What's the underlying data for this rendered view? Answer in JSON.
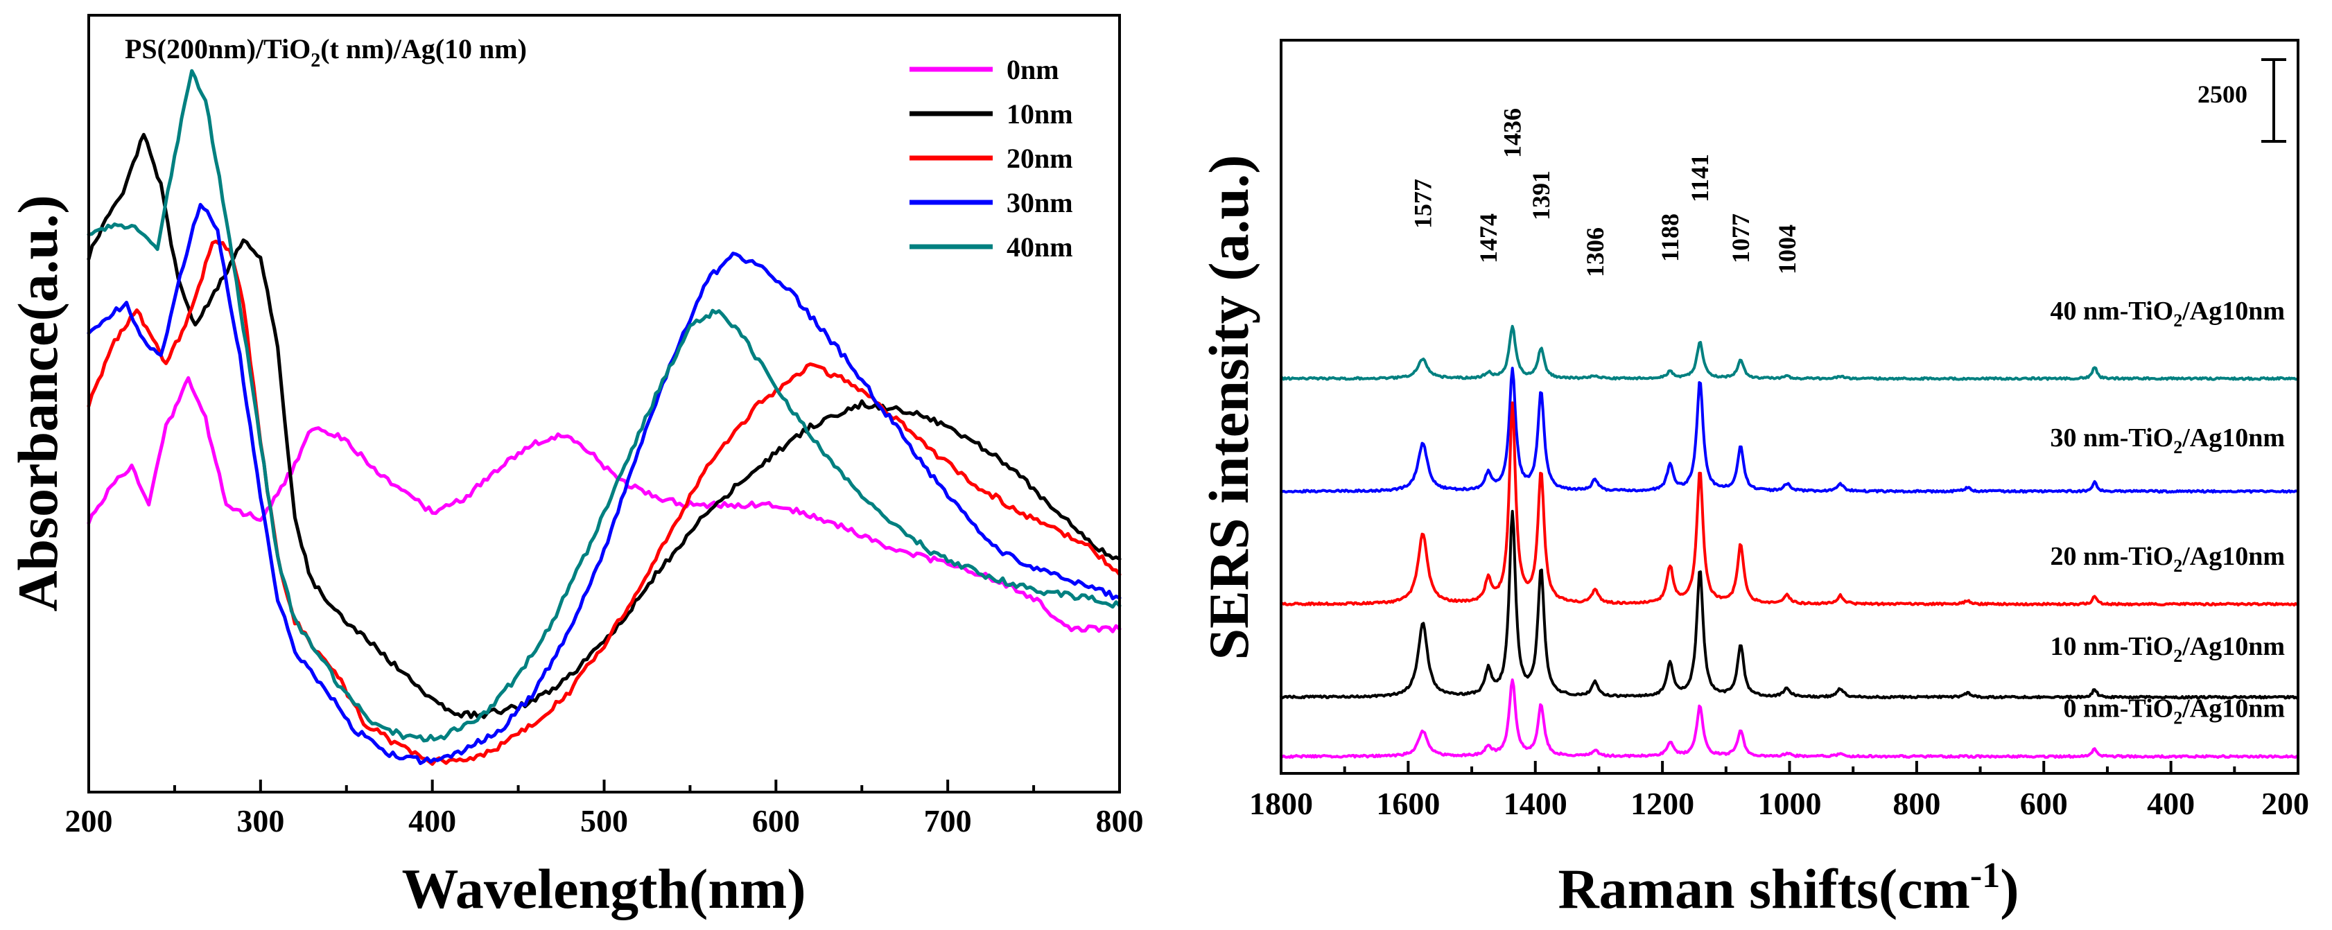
{
  "chart_data": [
    {
      "type": "line",
      "title": "PS(200nm)/TiO2(t nm)/Ag(10 nm)",
      "title_parts": {
        "pre": "PS(200nm)/TiO",
        "sub": "2",
        "post": "(t nm)/Ag(10 nm)"
      },
      "xlabel": "Wavelength(nm)",
      "ylabel": "Absorbance(a.u.)",
      "xlim": [
        200,
        800
      ],
      "ylim": [
        0,
        1
      ],
      "xticks": [
        200,
        300,
        400,
        500,
        600,
        700,
        800
      ],
      "xtick_labels": [
        "200",
        "300",
        "400",
        "500",
        "600",
        "700",
        "800"
      ],
      "legend_position": "top-right",
      "series": [
        {
          "name": "0nm",
          "color": "#ff00ff",
          "x": [
            200,
            215,
            225,
            235,
            245,
            258,
            268,
            280,
            300,
            320,
            330,
            345,
            370,
            400,
            420,
            440,
            460,
            475,
            490,
            510,
            530,
            550,
            570,
            600,
            630,
            660,
            690,
            720,
            750,
            770,
            800
          ],
          "y": [
            0.35,
            0.4,
            0.42,
            0.37,
            0.47,
            0.53,
            0.48,
            0.37,
            0.35,
            0.42,
            0.47,
            0.46,
            0.41,
            0.36,
            0.38,
            0.42,
            0.45,
            0.46,
            0.44,
            0.4,
            0.38,
            0.37,
            0.37,
            0.37,
            0.35,
            0.32,
            0.3,
            0.28,
            0.25,
            0.21,
            0.21
          ]
        },
        {
          "name": "10nm",
          "color": "#000000",
          "x": [
            200,
            210,
            220,
            232,
            242,
            252,
            262,
            275,
            290,
            300,
            310,
            320,
            330,
            345,
            360,
            380,
            400,
            415,
            430,
            450,
            470,
            490,
            510,
            530,
            560,
            590,
            620,
            650,
            680,
            700,
            730,
            760,
            790,
            800
          ],
          "y": [
            0.69,
            0.74,
            0.77,
            0.85,
            0.78,
            0.66,
            0.6,
            0.65,
            0.71,
            0.69,
            0.57,
            0.35,
            0.27,
            0.23,
            0.2,
            0.16,
            0.12,
            0.1,
            0.1,
            0.11,
            0.13,
            0.17,
            0.22,
            0.28,
            0.36,
            0.42,
            0.47,
            0.5,
            0.49,
            0.47,
            0.43,
            0.37,
            0.31,
            0.3
          ]
        },
        {
          "name": "20nm",
          "color": "#ff0000",
          "x": [
            200,
            215,
            228,
            245,
            260,
            272,
            282,
            290,
            300,
            310,
            320,
            330,
            345,
            360,
            380,
            400,
            420,
            440,
            460,
            480,
            500,
            520,
            540,
            560,
            590,
            620,
            640,
            660,
            690,
            720,
            750,
            780,
            800
          ],
          "y": [
            0.5,
            0.58,
            0.62,
            0.55,
            0.62,
            0.71,
            0.7,
            0.63,
            0.45,
            0.3,
            0.22,
            0.19,
            0.15,
            0.09,
            0.06,
            0.04,
            0.04,
            0.06,
            0.09,
            0.13,
            0.19,
            0.26,
            0.34,
            0.42,
            0.5,
            0.55,
            0.53,
            0.5,
            0.44,
            0.39,
            0.35,
            0.32,
            0.28
          ]
        },
        {
          "name": "30nm",
          "color": "#0000ff",
          "x": [
            200,
            210,
            222,
            232,
            242,
            255,
            265,
            275,
            288,
            300,
            310,
            320,
            335,
            355,
            375,
            395,
            415,
            440,
            460,
            480,
            500,
            520,
            540,
            560,
            575,
            590,
            610,
            640,
            670,
            700,
            730,
            760,
            800
          ],
          "y": [
            0.59,
            0.61,
            0.63,
            0.58,
            0.56,
            0.68,
            0.76,
            0.72,
            0.56,
            0.38,
            0.25,
            0.18,
            0.14,
            0.08,
            0.05,
            0.04,
            0.05,
            0.08,
            0.13,
            0.21,
            0.31,
            0.44,
            0.56,
            0.66,
            0.69,
            0.68,
            0.64,
            0.56,
            0.47,
            0.38,
            0.31,
            0.28,
            0.25
          ]
        },
        {
          "name": "40nm",
          "color": "#008080",
          "x": [
            200,
            215,
            225,
            240,
            250,
            260,
            268,
            280,
            292,
            300,
            310,
            320,
            330,
            345,
            365,
            385,
            405,
            430,
            450,
            470,
            490,
            510,
            530,
            550,
            565,
            580,
            600,
            630,
            660,
            690,
            720,
            750,
            780,
            800
          ],
          "y": [
            0.72,
            0.73,
            0.73,
            0.7,
            0.82,
            0.93,
            0.89,
            0.74,
            0.57,
            0.45,
            0.3,
            0.22,
            0.19,
            0.14,
            0.09,
            0.07,
            0.07,
            0.1,
            0.15,
            0.22,
            0.31,
            0.41,
            0.51,
            0.6,
            0.62,
            0.59,
            0.52,
            0.43,
            0.36,
            0.31,
            0.28,
            0.26,
            0.25,
            0.24
          ]
        }
      ]
    },
    {
      "type": "line",
      "title": "",
      "xlabel": "Raman shifts(cm-1)",
      "xlabel_parts": {
        "pre": "Raman shifts(cm",
        "sup": "-1",
        "post": ")"
      },
      "ylabel": "SERS intensity (a.u.)",
      "xlim": [
        1800,
        200
      ],
      "x_reversed": true,
      "ylim": [
        0,
        26000
      ],
      "xticks": [
        1800,
        1600,
        1400,
        1200,
        1000,
        800,
        600,
        400,
        200
      ],
      "xtick_labels": [
        "1800",
        "1600",
        "1400",
        "1200",
        "1000",
        "800",
        "600",
        "400",
        "200"
      ],
      "scale_bar": {
        "label": "2500",
        "value": 2500
      },
      "peak_labels": [
        "1577",
        "1474",
        "1436",
        "1391",
        "1306",
        "1188",
        "1141",
        "1077",
        "1004"
      ],
      "peak_positions": [
        1577,
        1474,
        1436,
        1391,
        1306,
        1188,
        1141,
        1077,
        1004
      ],
      "series": [
        {
          "name": "40 nm-TiO2/Ag10nm",
          "label_parts": {
            "pre": "40 nm-TiO",
            "sub": "2",
            "post": "/Ag10nm"
          },
          "color": "#008080",
          "baseline": 14000,
          "peaks": {
            "1577": 700,
            "1474": 200,
            "1436": 1850,
            "1391": 1050,
            "1306": 100,
            "1188": 250,
            "1141": 1300,
            "1077": 650,
            "1004": 80,
            "920": 80,
            "520": 420
          }
        },
        {
          "name": "30 nm-TiO2/Ag10nm",
          "label_parts": {
            "pre": "30 nm-TiO",
            "sub": "2",
            "post": "/Ag10nm"
          },
          "color": "#0000ff",
          "baseline": 10000,
          "peaks": {
            "1577": 1700,
            "1474": 600,
            "1436": 4300,
            "1391": 3500,
            "1306": 400,
            "1188": 900,
            "1141": 3900,
            "1077": 1550,
            "1004": 250,
            "920": 250,
            "720": 120,
            "520": 350
          }
        },
        {
          "name": "20 nm-TiO2/Ag10nm",
          "label_parts": {
            "pre": "20 nm-TiO",
            "sub": "2",
            "post": "/Ag10nm"
          },
          "color": "#ff0000",
          "baseline": 6000,
          "peaks": {
            "1577": 2500,
            "1474": 800,
            "1436": 7000,
            "1391": 4600,
            "1306": 500,
            "1188": 1300,
            "1141": 4700,
            "1077": 2100,
            "1004": 300,
            "920": 300,
            "720": 120,
            "520": 300
          }
        },
        {
          "name": "10 nm-TiO2/Ag10nm",
          "label_parts": {
            "pre": "10 nm-TiO",
            "sub": "2",
            "post": "/Ag10nm"
          },
          "color": "#000000",
          "baseline": 2700,
          "peaks": {
            "1577": 2600,
            "1474": 900,
            "1436": 6500,
            "1391": 4500,
            "1306": 500,
            "1188": 1200,
            "1141": 4500,
            "1077": 1850,
            "1004": 300,
            "920": 300,
            "720": 150,
            "520": 300
          }
        },
        {
          "name": "0 nm-TiO2/Ag10nm",
          "label_parts": {
            "pre": "0 nm-TiO",
            "sub": "2",
            "post": "/Ag10nm"
          },
          "color": "#ff00ff",
          "baseline": 600,
          "peaks": {
            "1577": 900,
            "1474": 350,
            "1436": 2700,
            "1391": 1800,
            "1306": 200,
            "1188": 500,
            "1141": 1800,
            "1077": 900,
            "1004": 100,
            "920": 100,
            "520": 300
          }
        }
      ]
    }
  ]
}
